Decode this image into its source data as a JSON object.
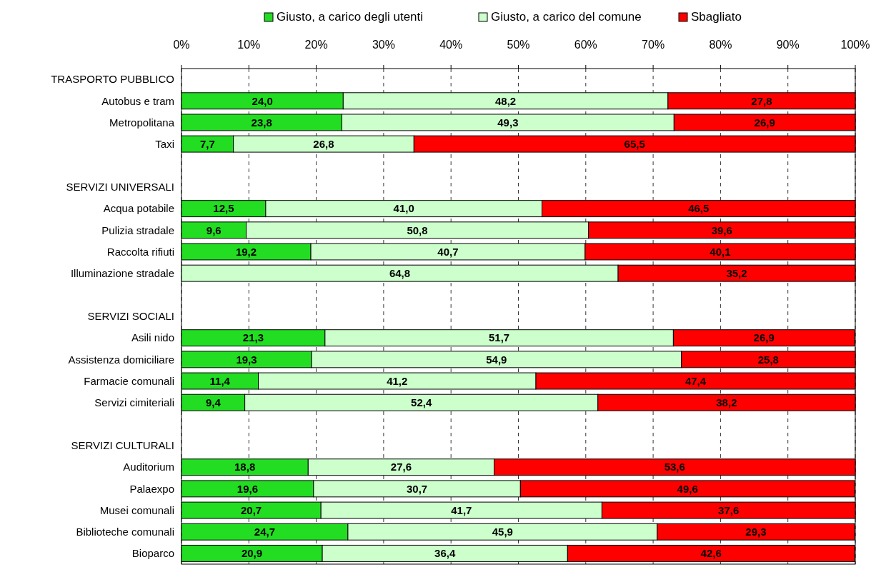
{
  "chart_data": {
    "type": "bar",
    "orientation": "horizontal",
    "stacked": true,
    "categories": [
      "TRASPORTO PUBBLICO",
      "Autobus e tram",
      "Metropolitana",
      "Taxi",
      null,
      "SERVIZI UNIVERSALI",
      "Acqua potabile",
      "Pulizia stradale",
      "Raccolta rifiuti",
      "Illuminazione stradale",
      null,
      "SERVIZI SOCIALI",
      "Asili nido",
      "Assistenza domiciliare",
      "Farmacie comunali",
      "Servizi cimiteriali",
      null,
      "SERVIZI CULTURALI",
      "Auditorium",
      "Palaexpo",
      "Musei comunali",
      "Biblioteche comunali",
      "Bioparco"
    ],
    "series": [
      {
        "name": "Giusto, a carico degli utenti",
        "color": "#22dd22",
        "values": [
          null,
          24.0,
          23.8,
          7.7,
          null,
          null,
          12.5,
          9.6,
          19.2,
          null,
          null,
          null,
          21.3,
          19.3,
          11.4,
          9.4,
          null,
          null,
          18.8,
          19.6,
          20.7,
          24.7,
          20.9
        ],
        "value_labels": [
          null,
          "24,0",
          "23,8",
          "7,7",
          null,
          null,
          "12,5",
          "9,6",
          "19,2",
          null,
          null,
          null,
          "21,3",
          "19,3",
          "11,4",
          "9,4",
          null,
          null,
          "18,8",
          "19,6",
          "20,7",
          "24,7",
          "20,9"
        ]
      },
      {
        "name": "Giusto, a carico del comune",
        "color": "#ccffcc",
        "values": [
          null,
          48.2,
          49.3,
          26.8,
          null,
          null,
          41.0,
          50.8,
          40.7,
          64.8,
          null,
          null,
          51.7,
          54.9,
          41.2,
          52.4,
          null,
          null,
          27.6,
          30.7,
          41.7,
          45.9,
          36.4
        ],
        "value_labels": [
          null,
          "48,2",
          "49,3",
          "26,8",
          null,
          null,
          "41,0",
          "50,8",
          "40,7",
          "64,8",
          null,
          null,
          "51,7",
          "54,9",
          "41,2",
          "52,4",
          null,
          null,
          "27,6",
          "30,7",
          "41,7",
          "45,9",
          "36,4"
        ]
      },
      {
        "name": "Sbagliato",
        "color": "#ff0000",
        "values": [
          null,
          27.8,
          26.9,
          65.5,
          null,
          null,
          46.5,
          39.6,
          40.1,
          35.2,
          null,
          null,
          26.9,
          25.8,
          47.4,
          38.2,
          null,
          null,
          53.6,
          49.6,
          37.6,
          29.3,
          42.6
        ],
        "value_labels": [
          null,
          "27,8",
          "26,9",
          "65,5",
          null,
          null,
          "46,5",
          "39,6",
          "40,1",
          "35,2",
          null,
          null,
          "26,9",
          "25,8",
          "47,4",
          "38,2",
          null,
          null,
          "53,6",
          "49,6",
          "37,6",
          "29,3",
          "42,6"
        ]
      }
    ],
    "xlim": [
      0,
      100
    ],
    "xticks": [
      {
        "value": 0,
        "label": "0%"
      },
      {
        "value": 10,
        "label": "10%"
      },
      {
        "value": 20,
        "label": "20%"
      },
      {
        "value": 30,
        "label": "30%"
      },
      {
        "value": 40,
        "label": "40%"
      },
      {
        "value": 50,
        "label": "50%"
      },
      {
        "value": 60,
        "label": "60%"
      },
      {
        "value": 70,
        "label": "70%"
      },
      {
        "value": 80,
        "label": "80%"
      },
      {
        "value": 90,
        "label": "90%"
      },
      {
        "value": 100,
        "label": "100%"
      }
    ],
    "grid": "x",
    "legend": "top"
  }
}
